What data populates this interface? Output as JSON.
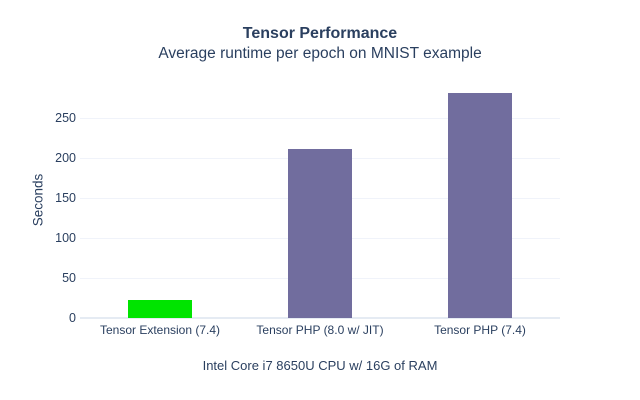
{
  "chart_data": {
    "type": "bar",
    "title": "Tensor Performance",
    "subtitle": "Average runtime per epoch on MNIST example",
    "ylabel": "Seconds",
    "xlabel": "Intel Core i7 8650U CPU w/ 16G of RAM",
    "categories": [
      "Tensor Extension (7.4)",
      "Tensor PHP (8.0 w/ JIT)",
      "Tensor PHP (7.4)"
    ],
    "values": [
      23,
      211,
      281
    ],
    "bar_colors": [
      "#00e400",
      "#716d9e",
      "#716d9e"
    ],
    "yticks": [
      0,
      50,
      100,
      150,
      200,
      250
    ],
    "ylim": [
      0,
      291
    ],
    "grid": true,
    "legend": "none",
    "colors": {
      "text": "#2a3f5f",
      "grid": "#f0f3fa",
      "axis": "#e5ebf3",
      "background": "#ffffff"
    }
  }
}
